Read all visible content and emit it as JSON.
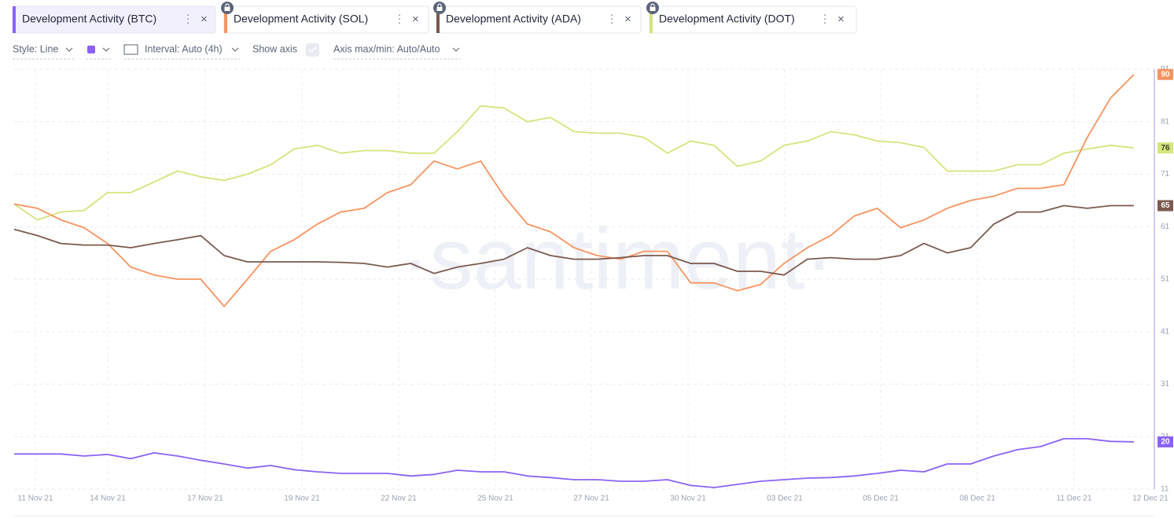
{
  "toolbar": {
    "style": "Style: Line",
    "interval": "Interval: Auto (4h)",
    "show_axis": "Show axis",
    "axis_range": "Axis max/min: Auto/Auto"
  },
  "watermark": "·santiment·",
  "chart_data": {
    "type": "line",
    "series": [
      {
        "name": "Development Activity (BTC)",
        "color": "#8c62f6",
        "values": [
          17.7,
          17.7,
          17.7,
          17.3,
          17.6,
          16.8,
          17.9,
          17.3,
          16.5,
          15.8,
          15,
          15.5,
          14.7,
          14.3,
          14,
          14,
          14,
          13.5,
          13.8,
          14.6,
          14.3,
          14.3,
          13.5,
          13.2,
          12.8,
          12.8,
          12.5,
          12.5,
          12.8,
          11.7,
          11.3,
          11.9,
          12.5,
          12.8,
          13.1,
          13.2,
          13.5,
          14,
          14.6,
          14.3,
          15.8,
          15.8,
          17.3,
          18.5,
          19.1,
          20.6,
          20.6,
          20.1,
          20
        ]
      },
      {
        "name": "Development Activity (SOL)",
        "color": "#f7935e",
        "values": [
          65.3,
          64.5,
          62.3,
          60.8,
          57.8,
          53.3,
          51.8,
          51,
          51,
          45.8,
          51,
          56.3,
          58.5,
          61.5,
          63.8,
          64.5,
          67.5,
          69,
          73.5,
          72,
          73.5,
          66.8,
          61.5,
          60,
          57,
          55.5,
          54.8,
          56.3,
          56.3,
          50.3,
          50.3,
          48.8,
          50,
          54,
          57,
          59.3,
          63,
          64.5,
          60.8,
          62.3,
          64.5,
          66,
          66.8,
          68.3,
          68.3,
          69,
          78,
          85.5,
          90
        ]
      },
      {
        "name": "Development Activity (ADA)",
        "color": "#7c5a4e",
        "values": [
          60.5,
          59.3,
          57.8,
          57.5,
          57.5,
          57,
          57.8,
          58.5,
          59.3,
          55.5,
          54.3,
          54.3,
          54.3,
          54.3,
          54.2,
          54,
          53.3,
          54,
          52.1,
          53.3,
          54,
          54.8,
          57,
          55.5,
          54.8,
          54.8,
          55.1,
          55.5,
          55.5,
          54,
          54,
          52.5,
          52.5,
          51.8,
          54.8,
          55.1,
          54.8,
          54.8,
          55.5,
          57.8,
          56,
          57,
          61.5,
          63.8,
          63.8,
          65,
          64.5,
          65,
          65
        ]
      },
      {
        "name": "Development Activity (DOT)",
        "color": "#d3e57c",
        "values": [
          65.3,
          62.3,
          63.8,
          64.1,
          67.5,
          67.5,
          69.5,
          71.6,
          70.5,
          69.8,
          71,
          72.8,
          75.8,
          76.5,
          75,
          75.5,
          75.5,
          75,
          75,
          79.1,
          84,
          83.6,
          81,
          81.8,
          79.1,
          78.8,
          78.8,
          78,
          75,
          77.3,
          76.5,
          72.5,
          73.5,
          76.5,
          77.3,
          79.1,
          78.5,
          77.3,
          77,
          76.1,
          71.6,
          71.6,
          71.6,
          72.8,
          72.8,
          75,
          75.8,
          76.5,
          76
        ]
      }
    ],
    "x_tick_labels": [
      "11 Nov 21",
      "14 Nov 21",
      "17 Nov 21",
      "19 Nov 21",
      "22 Nov 21",
      "25 Nov 21",
      "27 Nov 21",
      "30 Nov 21",
      "03 Dec 21",
      "05 Dec 21",
      "08 Dec 21",
      "11 Dec 21",
      "12 Dec 21"
    ],
    "ylim": [
      11,
      91
    ],
    "yticks": [
      11,
      21,
      31,
      41,
      51,
      61,
      71,
      81,
      91
    ],
    "grid": true
  }
}
